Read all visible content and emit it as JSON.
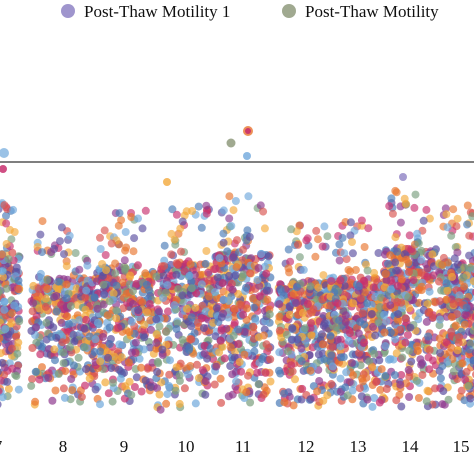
{
  "chart_data": {
    "type": "scatter",
    "title": "",
    "xlabel": "",
    "ylabel": "",
    "x_tick_labels": [
      "7",
      "8",
      "9",
      "10",
      "11",
      "12",
      "13",
      "14",
      "15"
    ],
    "threshold_line": true,
    "grid": false,
    "legend_placement": "top",
    "series": [
      {
        "name": "Post-Thaw Motility 1",
        "color": "#8E82C4"
      },
      {
        "name": "Post-Thaw Motility",
        "color": "#8F9A7C"
      }
    ],
    "point_palette": [
      "#5B4FA0",
      "#E8742E",
      "#C8306E",
      "#6FA8DC",
      "#F2A93B",
      "#8E3A8F",
      "#4A7BB7",
      "#D9534F",
      "#7A9E7E"
    ],
    "outliers": [
      {
        "chromosome": "11",
        "level": "very high"
      },
      {
        "chromosome": "7",
        "level": "high"
      }
    ]
  }
}
